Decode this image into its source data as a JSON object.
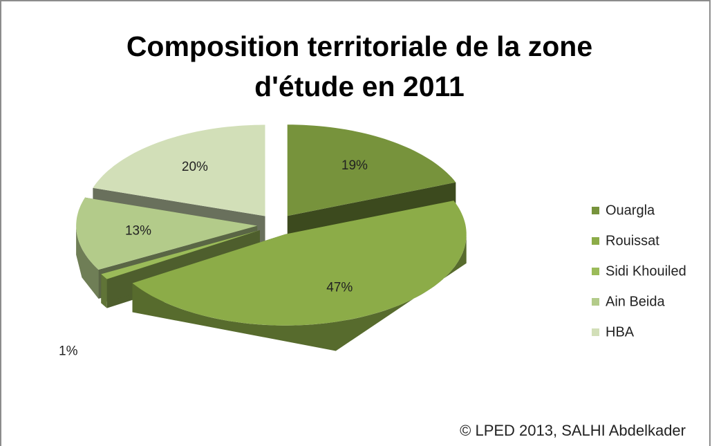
{
  "chart_data": {
    "type": "pie3d",
    "title": "Composition territoriale de la zone d'étude en 2011",
    "categories": [
      "Ouargla",
      "Rouissat",
      "Sidi Khouiled",
      "Ain Beida",
      "HBA"
    ],
    "values": [
      19,
      47,
      1,
      13,
      20
    ],
    "value_labels": [
      "19%",
      "47%",
      "1%",
      "13%",
      "20%"
    ],
    "colors": [
      "#77933c",
      "#8cac48",
      "#9bbb59",
      "#b3cb8a",
      "#d2dfb8"
    ],
    "legend": "right",
    "credit": "© LPED 2013, SALHI Abdelkader"
  }
}
